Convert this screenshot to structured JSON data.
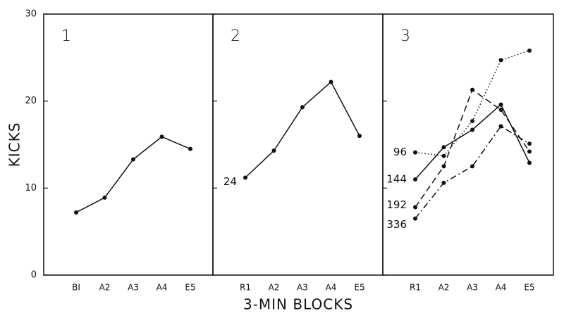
{
  "chart_data": [
    {
      "type": "line",
      "panel_label": "1",
      "y_label": "KICKS",
      "categories": [
        "BI",
        "A2",
        "A3",
        "A4",
        "E5"
      ],
      "series": [
        {
          "name": null,
          "color": "#111111",
          "style": "solid",
          "values": [
            7.2,
            8.9,
            13.3,
            15.9,
            14.5
          ]
        }
      ],
      "ylim": [
        0,
        30
      ],
      "yticks": [
        0,
        10,
        20,
        30
      ]
    },
    {
      "type": "line",
      "panel_label": "2",
      "x_label": "3-MIN BLOCKS",
      "categories": [
        "R1",
        "A2",
        "A3",
        "A4",
        "E5"
      ],
      "series": [
        {
          "name": "24",
          "color": "#111111",
          "style": "solid",
          "values": [
            11.2,
            14.3,
            19.3,
            22.2,
            16.0
          ]
        }
      ],
      "ylim": [
        0,
        30
      ],
      "yticks": [
        0,
        10,
        20,
        30
      ]
    },
    {
      "type": "line",
      "panel_label": "3",
      "categories": [
        "R1",
        "A2",
        "A3",
        "A4",
        "E5"
      ],
      "series": [
        {
          "name": "96",
          "color": "#111111",
          "style": "dotted",
          "values": [
            14.1,
            13.7,
            17.7,
            24.7,
            25.8
          ]
        },
        {
          "name": "144",
          "color": "#111111",
          "style": "solid",
          "values": [
            11.0,
            14.7,
            16.7,
            19.6,
            12.9
          ]
        },
        {
          "name": "192",
          "color": "#111111",
          "style": "dashed",
          "values": [
            7.8,
            12.5,
            21.3,
            19.0,
            14.2
          ]
        },
        {
          "name": "336",
          "color": "#111111",
          "style": "dashdot",
          "values": [
            6.5,
            10.6,
            12.5,
            17.1,
            15.1
          ]
        }
      ],
      "ylim": [
        0,
        30
      ],
      "yticks": [
        0,
        10,
        20,
        30
      ]
    }
  ]
}
